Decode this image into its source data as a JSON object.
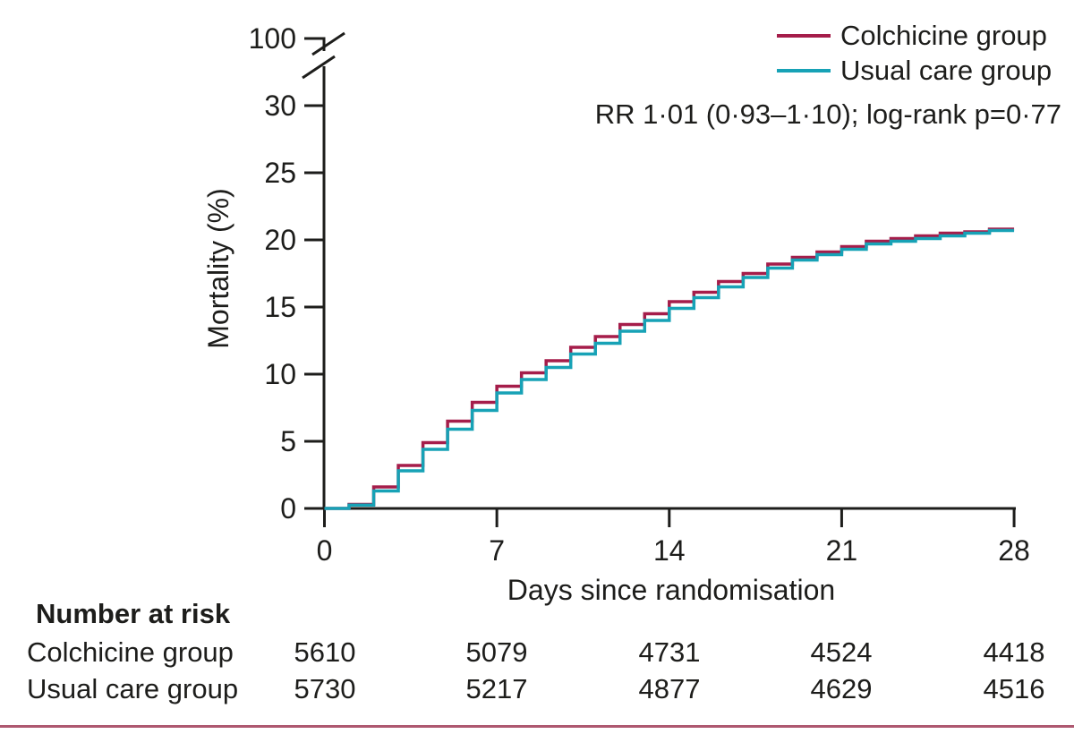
{
  "colors": {
    "axis": "#1d1d1b",
    "text": "#1d1d1b",
    "colchicine": "#a51d4a",
    "usual_care": "#17a2b6",
    "bottom_rule": "#ae5870"
  },
  "figure": {
    "y_axis_label": "Mortality (%)",
    "x_axis_label": "Days since randomisation",
    "annotation": "RR 1·01 (0·93–1·10); log-rank p=0·77",
    "legend": [
      {
        "label": "Colchicine group",
        "color": "#a51d4a"
      },
      {
        "label": "Usual care group",
        "color": "#17a2b6"
      }
    ]
  },
  "chart_data": {
    "type": "line",
    "subtype": "kaplan-meier-step",
    "title": "",
    "xlabel": "Days since randomisation",
    "ylabel": "Mortality (%)",
    "xlim": [
      0,
      28
    ],
    "ylim": [
      0,
      30
    ],
    "y_axis_break": true,
    "y_break_upper_tick": 100,
    "x_ticks": [
      0,
      7,
      14,
      21,
      28
    ],
    "y_ticks": [
      100,
      30,
      25,
      20,
      15,
      10,
      5,
      0
    ],
    "legend_position": "top-right",
    "grid": false,
    "annotation": "RR 1·01 (0·93–1·10); log-rank p=0·77",
    "series": [
      {
        "name": "Colchicine group",
        "color": "#a51d4a",
        "step_days": "daily levels for interval [day, day+1), day = 0..27",
        "values": [
          0,
          0.3,
          1.6,
          3.2,
          4.9,
          6.5,
          7.9,
          9.1,
          10.1,
          11.0,
          12.0,
          12.8,
          13.7,
          14.5,
          15.4,
          16.1,
          16.9,
          17.5,
          18.2,
          18.7,
          19.1,
          19.5,
          19.9,
          20.1,
          20.3,
          20.5,
          20.6,
          20.8
        ]
      },
      {
        "name": "Usual care group",
        "color": "#17a2b6",
        "step_days": "daily levels for interval [day, day+1), day = 0..27",
        "values": [
          0,
          0.25,
          1.3,
          2.8,
          4.4,
          5.9,
          7.3,
          8.6,
          9.6,
          10.5,
          11.5,
          12.3,
          13.2,
          14.0,
          14.9,
          15.7,
          16.5,
          17.2,
          17.9,
          18.5,
          18.9,
          19.3,
          19.7,
          19.9,
          20.1,
          20.3,
          20.5,
          20.7
        ]
      }
    ]
  },
  "number_at_risk": {
    "header": "Number at risk",
    "timepoints": [
      0,
      7,
      14,
      21,
      28
    ],
    "rows": [
      {
        "label": "Colchicine group",
        "counts": [
          "5610",
          "5079",
          "4731",
          "4524",
          "4418"
        ]
      },
      {
        "label": "Usual care group",
        "counts": [
          "5730",
          "5217",
          "4877",
          "4629",
          "4516"
        ]
      }
    ]
  }
}
